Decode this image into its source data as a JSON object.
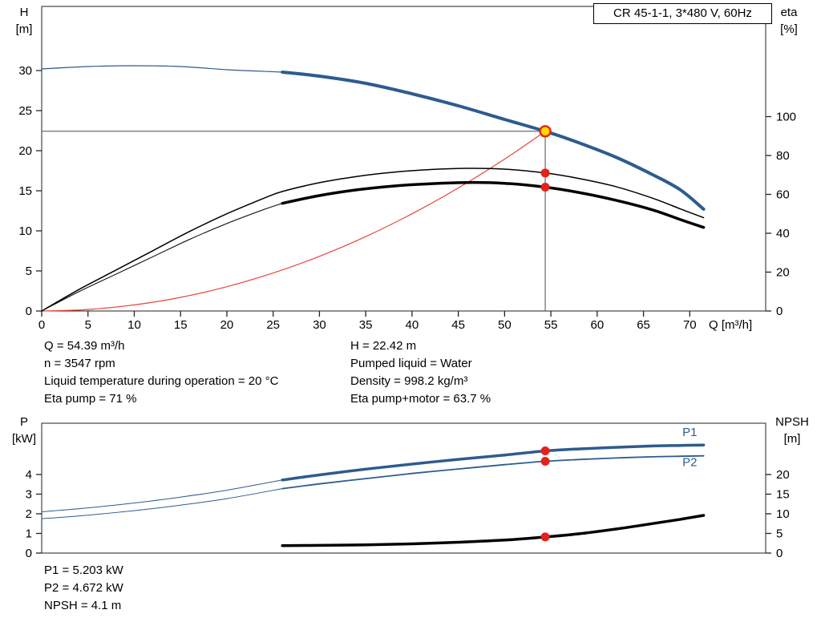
{
  "title_box": {
    "label": "CR 45-1-1, 3*480 V, 60Hz"
  },
  "colors": {
    "curve_blue": "#2E5B8F",
    "curve_black": "#000000",
    "curve_red": "#E8453C",
    "marker_red": "#E32219",
    "duty_fill": "#FFD800",
    "crosshair": "#4A4A4A",
    "frame": "#222222"
  },
  "info_top_left": [
    "Q = 54.39 m³/h",
    "n = 3547 rpm",
    "Liquid temperature during operation = 20 °C",
    "Eta pump = 71 %"
  ],
  "info_top_right": [
    "H = 22.42 m",
    "Pumped liquid = Water",
    "Density = 998.2 kg/m³",
    "Eta pump+motor = 63.7 %"
  ],
  "info_bottom": [
    "P1 = 5.203 kW",
    "P2 = 4.672 kW",
    "NPSH = 4.1 m"
  ],
  "chart_data": [
    {
      "id": "head-efficiency-chart",
      "type": "line",
      "x": {
        "label": "Q [m³/h]",
        "min": 0,
        "max": 78.2,
        "ticks": [
          0,
          5,
          10,
          15,
          20,
          25,
          30,
          35,
          40,
          45,
          50,
          55,
          60,
          65,
          70
        ]
      },
      "y_left": {
        "label": "H",
        "unit": "[m]",
        "min": 0,
        "max": 38,
        "ticks": [
          0,
          5,
          10,
          15,
          20,
          25,
          30
        ]
      },
      "y_right": {
        "label": "eta",
        "unit": "[%]",
        "min": 0,
        "max": 156.7,
        "ticks": [
          0,
          20,
          40,
          60,
          80,
          100
        ]
      },
      "crosshair": {
        "q": 54.39,
        "v": 22.42
      },
      "series": [
        {
          "name": "system-curve",
          "axis": "left",
          "color": "#E8453C",
          "width": 1.2,
          "points": [
            [
              0,
              0
            ],
            [
              5,
              0.19
            ],
            [
              10,
              0.76
            ],
            [
              15,
              1.7
            ],
            [
              20,
              3.03
            ],
            [
              25,
              4.74
            ],
            [
              30,
              6.82
            ],
            [
              35,
              9.28
            ],
            [
              40,
              12.13
            ],
            [
              45,
              15.35
            ],
            [
              50,
              18.95
            ],
            [
              54.39,
              22.42
            ]
          ]
        },
        {
          "name": "eta-pump-curve",
          "axis": "right",
          "color": "#000000",
          "width": 1.5,
          "points": [
            [
              0,
              0
            ],
            [
              4,
              11
            ],
            [
              8,
              21
            ],
            [
              12,
              31
            ],
            [
              16,
              41
            ],
            [
              20,
              50
            ],
            [
              24,
              58
            ],
            [
              26,
              61.5
            ],
            [
              30,
              66
            ],
            [
              34,
              69.2
            ],
            [
              38,
              71.4
            ],
            [
              42,
              72.8
            ],
            [
              46,
              73.4
            ],
            [
              50,
              73
            ],
            [
              54.39,
              71
            ],
            [
              58,
              68.2
            ],
            [
              62,
              64
            ],
            [
              66,
              58
            ],
            [
              69,
              52.5
            ],
            [
              71.5,
              48
            ]
          ]
        },
        {
          "name": "eta-pump-motor-curve-low-flow",
          "axis": "right",
          "color": "#000000",
          "width": 1,
          "points": [
            [
              0,
              0
            ],
            [
              4,
              9.9
            ],
            [
              8,
              18.9
            ],
            [
              12,
              27.9
            ],
            [
              16,
              36.9
            ],
            [
              20,
              45
            ],
            [
              24,
              52.2
            ],
            [
              26,
              55.4
            ]
          ]
        },
        {
          "name": "eta-pump-motor-curve",
          "axis": "right",
          "color": "#000000",
          "width": 3.5,
          "points": [
            [
              26,
              55.4
            ],
            [
              30,
              59.4
            ],
            [
              34,
              62.3
            ],
            [
              38,
              64.3
            ],
            [
              42,
              65.5
            ],
            [
              46,
              66.1
            ],
            [
              50,
              65.7
            ],
            [
              54.39,
              63.7
            ],
            [
              58,
              61
            ],
            [
              62,
              57
            ],
            [
              66,
              52
            ],
            [
              69,
              47
            ],
            [
              71.5,
              43
            ]
          ]
        },
        {
          "name": "head-curve-low-flow",
          "axis": "left",
          "color": "#2E5B8F",
          "width": 1.2,
          "points": [
            [
              0,
              30.2
            ],
            [
              5,
              30.5
            ],
            [
              10,
              30.6
            ],
            [
              15,
              30.5
            ],
            [
              20,
              30.1
            ],
            [
              23,
              29.95
            ],
            [
              26,
              29.8
            ]
          ]
        },
        {
          "name": "head-curve",
          "axis": "left",
          "color": "#2E5B8F",
          "width": 4,
          "points": [
            [
              26,
              29.8
            ],
            [
              30,
              29.3
            ],
            [
              35,
              28.4
            ],
            [
              40,
              27.1
            ],
            [
              45,
              25.6
            ],
            [
              50,
              23.9
            ],
            [
              54.39,
              22.42
            ],
            [
              58,
              21
            ],
            [
              62,
              19.2
            ],
            [
              66,
              17
            ],
            [
              69,
              15.1
            ],
            [
              71.5,
              12.7
            ]
          ]
        }
      ],
      "markers": [
        {
          "name": "duty-point",
          "q": 54.39,
          "v": 22.42,
          "axis": "left",
          "style": "duty"
        },
        {
          "name": "eta-pump-point",
          "q": 54.39,
          "v": 71,
          "axis": "right",
          "style": "dot"
        },
        {
          "name": "eta-pump-motor-point",
          "q": 54.39,
          "v": 63.7,
          "axis": "right",
          "style": "dot"
        }
      ],
      "labels": []
    },
    {
      "id": "power-npsh-chart",
      "type": "line",
      "x": {
        "label": "",
        "min": 0,
        "max": 78.2,
        "ticks": []
      },
      "y_left": {
        "label": "P",
        "unit": "[kW]",
        "min": 0,
        "max": 6.61,
        "ticks": [
          0,
          1,
          2,
          3,
          4
        ]
      },
      "y_right": {
        "label": "NPSH",
        "unit": "[m]",
        "min": 0,
        "max": 33.06,
        "ticks": [
          0,
          5,
          10,
          15,
          20
        ]
      },
      "series": [
        {
          "name": "p1-curve-low-flow",
          "axis": "left",
          "color": "#2E5B8F",
          "width": 1,
          "points": [
            [
              0,
              2.1
            ],
            [
              5,
              2.3
            ],
            [
              10,
              2.55
            ],
            [
              15,
              2.85
            ],
            [
              20,
              3.2
            ],
            [
              26,
              3.72
            ]
          ]
        },
        {
          "name": "p1-curve",
          "axis": "left",
          "color": "#2E5B8F",
          "width": 3.5,
          "points": [
            [
              26,
              3.72
            ],
            [
              30,
              3.98
            ],
            [
              35,
              4.27
            ],
            [
              40,
              4.53
            ],
            [
              45,
              4.77
            ],
            [
              50,
              4.99
            ],
            [
              54.39,
              5.2
            ],
            [
              58,
              5.3
            ],
            [
              62,
              5.38
            ],
            [
              66,
              5.45
            ],
            [
              69,
              5.48
            ],
            [
              71.5,
              5.5
            ]
          ]
        },
        {
          "name": "p2-curve-low-flow",
          "axis": "left",
          "color": "#2E5B8F",
          "width": 1,
          "points": [
            [
              0,
              1.75
            ],
            [
              5,
              1.93
            ],
            [
              10,
              2.16
            ],
            [
              15,
              2.44
            ],
            [
              20,
              2.77
            ],
            [
              26,
              3.28
            ]
          ]
        },
        {
          "name": "p2-curve",
          "axis": "left",
          "color": "#2E5B8F",
          "width": 1.8,
          "points": [
            [
              26,
              3.28
            ],
            [
              30,
              3.52
            ],
            [
              35,
              3.79
            ],
            [
              40,
              4.05
            ],
            [
              45,
              4.28
            ],
            [
              50,
              4.5
            ],
            [
              54.39,
              4.67
            ],
            [
              58,
              4.76
            ],
            [
              62,
              4.84
            ],
            [
              66,
              4.9
            ],
            [
              69,
              4.93
            ],
            [
              71.5,
              4.95
            ]
          ]
        },
        {
          "name": "npsh-curve",
          "axis": "right",
          "color": "#000000",
          "width": 3.5,
          "points": [
            [
              26,
              1.9
            ],
            [
              30,
              1.95
            ],
            [
              35,
              2.1
            ],
            [
              40,
              2.35
            ],
            [
              45,
              2.75
            ],
            [
              50,
              3.3
            ],
            [
              54.39,
              4.1
            ],
            [
              58,
              4.9
            ],
            [
              62,
              6.1
            ],
            [
              66,
              7.5
            ],
            [
              69,
              8.6
            ],
            [
              71.5,
              9.6
            ]
          ]
        }
      ],
      "markers": [
        {
          "name": "p1-point",
          "q": 54.39,
          "v": 5.203,
          "axis": "left",
          "style": "dot"
        },
        {
          "name": "p2-point",
          "q": 54.39,
          "v": 4.672,
          "axis": "left",
          "style": "dot"
        },
        {
          "name": "npsh-point",
          "q": 54.39,
          "v": 4.1,
          "axis": "right",
          "style": "dot"
        }
      ],
      "labels": [
        {
          "text": "P1",
          "q": 69.2,
          "v": 5.95,
          "axis": "left",
          "color": "#2E5B8F"
        },
        {
          "text": "P2",
          "q": 69.2,
          "v": 4.42,
          "axis": "left",
          "color": "#2E5B8F"
        }
      ]
    }
  ]
}
